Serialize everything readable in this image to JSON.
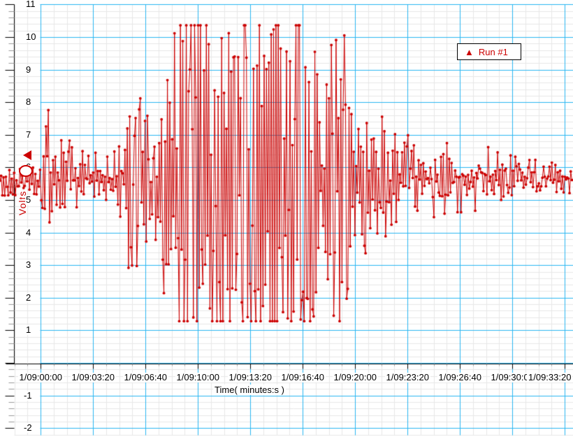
{
  "colors": {
    "trace": "#CC0000",
    "grid_major": "#29B6F2",
    "grid_minor": "#E8E8E8",
    "axis": "#000000",
    "tick_minor": "#9A9A9A",
    "legend_border": "#000000",
    "background": "#FFFFFF"
  },
  "legend": {
    "marker": "▲",
    "label": "Run #1"
  },
  "chart_data": {
    "type": "line",
    "title": "",
    "xlabel": "Time( minutes:s )",
    "ylabel": "Volts",
    "legend_position": "top-right",
    "grid": "on",
    "y_range": [
      -2,
      11
    ],
    "y_tick_values": [
      11,
      10,
      9,
      8,
      7,
      6,
      5,
      4,
      3,
      2,
      1,
      -1,
      -2
    ],
    "y_minor_step": 0.2,
    "x_tick_labels": [
      "1/09:00:00",
      "1/09:03:20",
      "1/09:06:40",
      "1/09:10:00",
      "1/09:13:20",
      "1/09:16:40",
      "1/09:20:00",
      "1/09:23:20",
      "1/09:26:40",
      "1/09:30:00",
      "1/09:33:20"
    ],
    "x_tick_seconds": [
      0,
      200,
      400,
      600,
      800,
      1000,
      1200,
      1400,
      1600,
      1800,
      2000
    ],
    "x_minor_step_s": 50,
    "x_range_seconds": [
      -154.7,
      2032
    ],
    "signal": {
      "name": "Run #1",
      "units": "Volts",
      "baseline_volts": 5.6,
      "clip_min": 1.28,
      "clip_max": 10.36,
      "sample_interval_s": 4.5,
      "envelope": [
        [
          -155,
          5.15,
          6.05
        ],
        [
          -25,
          5.0,
          6.15
        ],
        [
          5,
          4.5,
          6.5
        ],
        [
          30,
          3.6,
          8.0
        ],
        [
          55,
          4.1,
          7.2
        ],
        [
          100,
          4.5,
          6.9
        ],
        [
          165,
          4.8,
          6.5
        ],
        [
          245,
          4.7,
          6.5
        ],
        [
          318,
          4.4,
          6.7
        ],
        [
          340,
          2.2,
          9.2
        ],
        [
          392,
          2.5,
          8.0
        ],
        [
          437,
          2.8,
          7.6
        ],
        [
          478,
          1.9,
          8.7
        ],
        [
          517,
          1.28,
          10.36
        ],
        [
          735,
          1.28,
          10.36
        ],
        [
          748,
          2.5,
          9.2
        ],
        [
          762,
          1.28,
          10.36
        ],
        [
          1040,
          1.28,
          10.36
        ],
        [
          1070,
          3.2,
          7.8
        ],
        [
          1097,
          2.2,
          9.0
        ],
        [
          1120,
          1.28,
          10.36
        ],
        [
          1155,
          1.28,
          10.36
        ],
        [
          1192,
          3.2,
          7.7
        ],
        [
          1253,
          3.2,
          7.4
        ],
        [
          1307,
          3.3,
          7.6
        ],
        [
          1360,
          4.2,
          7.2
        ],
        [
          1445,
          4.4,
          7.0
        ],
        [
          1552,
          4.5,
          6.8
        ],
        [
          1685,
          4.7,
          6.7
        ],
        [
          1792,
          5.0,
          6.4
        ],
        [
          1912,
          5.15,
          6.2
        ],
        [
          2032,
          5.15,
          6.1
        ]
      ]
    },
    "annotations": {
      "y_axis_marker_volts": 6.37,
      "ellipse": {
        "t_s": -56,
        "volts": 5.9
      }
    }
  }
}
